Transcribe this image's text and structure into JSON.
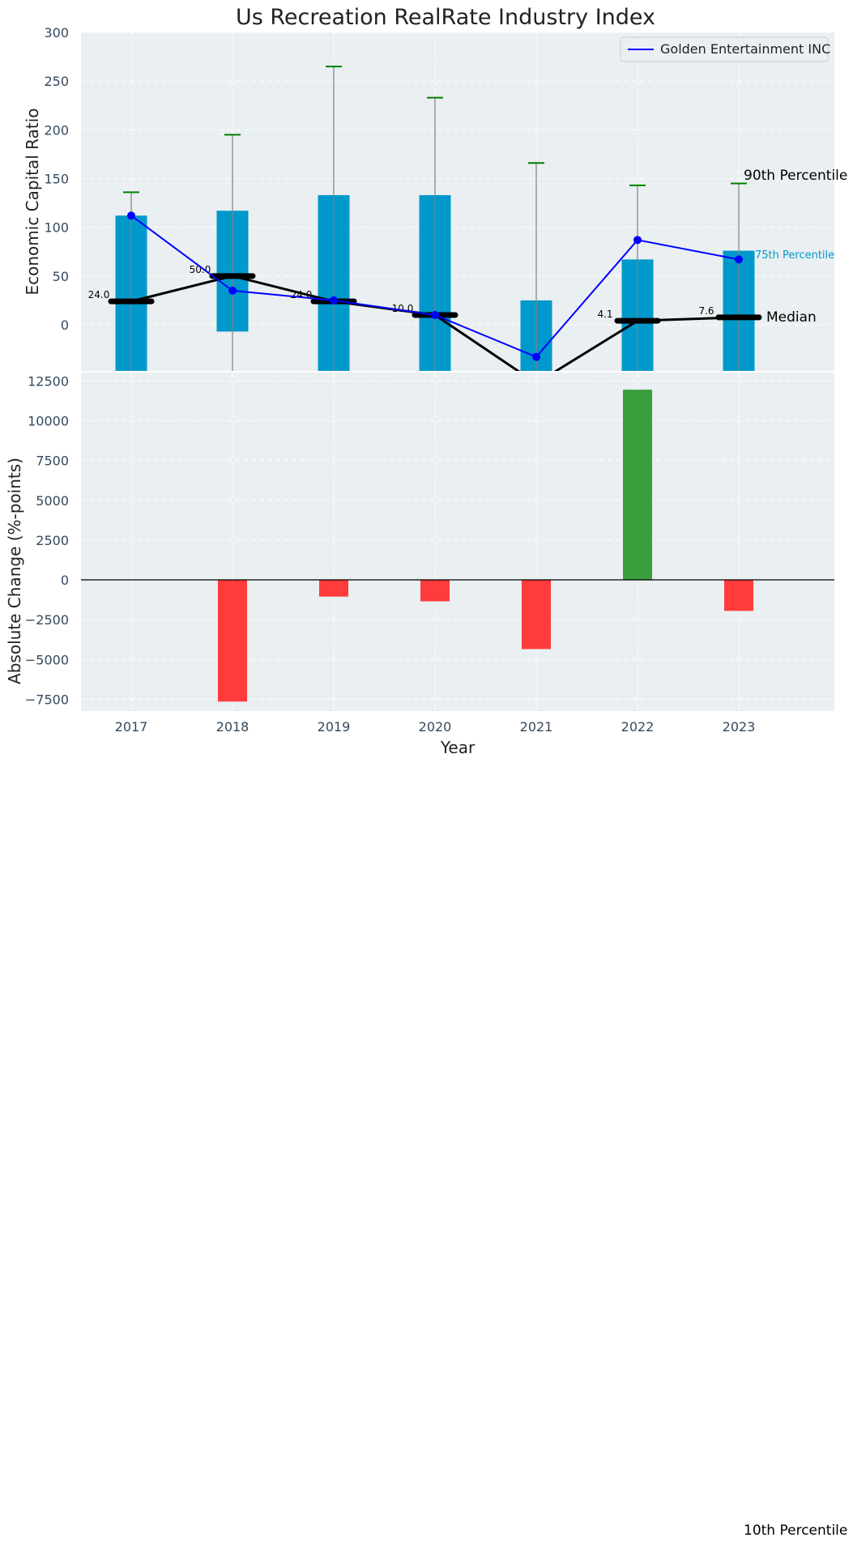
{
  "chart_data": [
    {
      "type": "bar",
      "title": "Us Recreation RealRate Industry Index",
      "xlabel": "",
      "ylabel": "Economic Capital Ratio",
      "ylim": [
        -48,
        300
      ],
      "yticks": [
        0,
        50,
        100,
        150,
        200,
        250,
        300
      ],
      "categories": [
        "2017",
        "2018",
        "2019",
        "2020",
        "2021",
        "2022",
        "2023"
      ],
      "percentile_25": [
        -48,
        -7,
        -48,
        -48,
        -48,
        -48,
        -48
      ],
      "percentile_75": [
        112,
        117,
        133,
        133,
        25,
        67,
        76
      ],
      "percentile_10": [
        -48,
        -48,
        -48,
        -48,
        -48,
        -48,
        -48
      ],
      "percentile_90": [
        136,
        195,
        265,
        233,
        166,
        143,
        145
      ],
      "median": [
        24.0,
        50.0,
        24.0,
        10.0,
        -60.0,
        4.1,
        7.6
      ],
      "median_labels": [
        "24.0",
        "50.0",
        "24.0",
        "10.0",
        "",
        "4.1",
        "7.6"
      ],
      "company": {
        "name": "Golden Entertainment INC",
        "values": [
          112,
          35,
          25,
          10,
          -33,
          87,
          67
        ]
      },
      "annotations": {
        "p90": "90th Percentile",
        "p75": "75th Percentile",
        "median": "Median",
        "p10": "10th Percentile"
      },
      "legend": "top-right",
      "grid": true
    },
    {
      "type": "bar",
      "title": "",
      "xlabel": "Year",
      "ylabel": "Absolute Change (%-points)",
      "ylim": [
        -8500,
        12500
      ],
      "yticks": [
        -7500,
        -5000,
        -2500,
        0,
        2500,
        5000,
        7500,
        10000,
        12500
      ],
      "categories": [
        "2017",
        "2018",
        "2019",
        "2020",
        "2021",
        "2022",
        "2023"
      ],
      "values": [
        0,
        -7650,
        -1050,
        -1350,
        -4350,
        11950,
        -1950
      ],
      "positive_color": "#3a9e3d",
      "negative_color": "#ff3b3b",
      "grid": true
    }
  ],
  "colors": {
    "panel_bg": "#eaeff1",
    "bar": "#0099cc",
    "company_line": "#0000ff",
    "median_line": "#000000",
    "p90_cap": "#008000",
    "whisker": "#808080",
    "tick_text": "#34495e",
    "p75_label": "#0099cc"
  }
}
